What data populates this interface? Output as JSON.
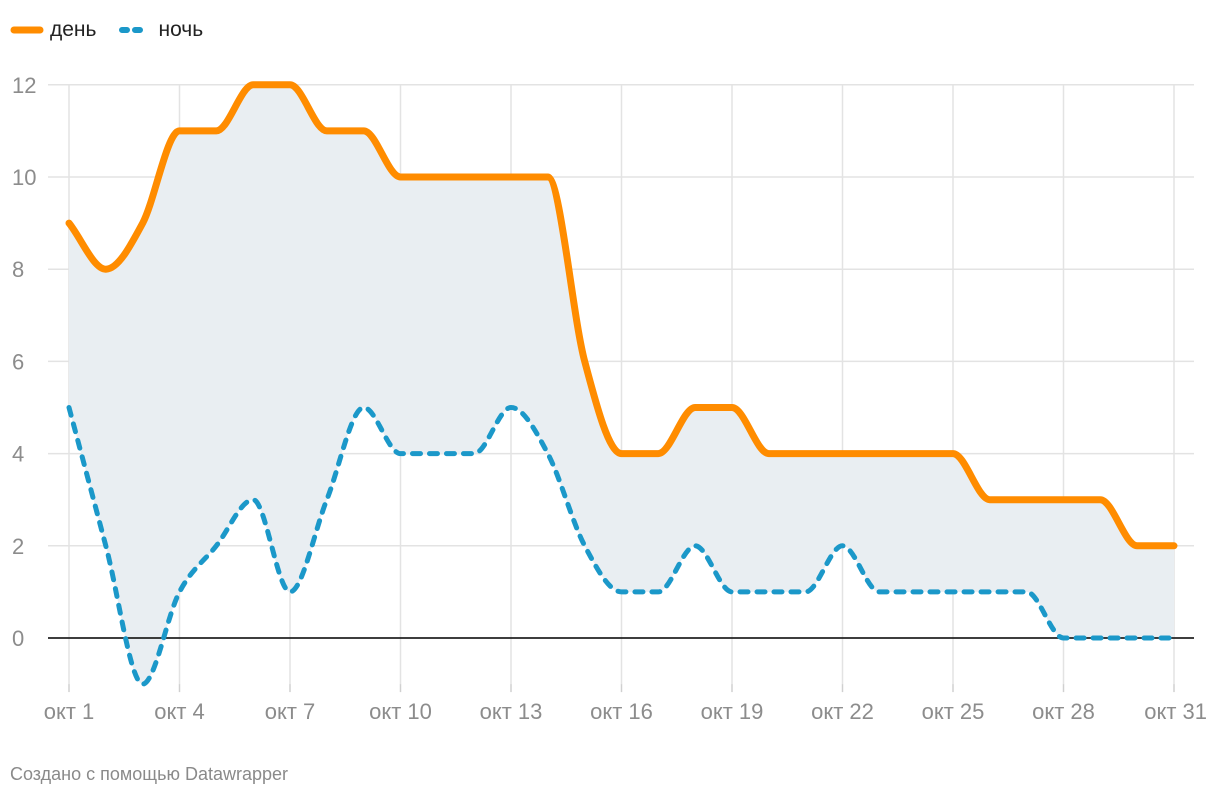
{
  "legend": {
    "day": "день",
    "night": "ночь"
  },
  "footer": "Создано с помощью Datawrapper",
  "chart_data": {
    "type": "line",
    "title": "",
    "xlabel": "",
    "ylabel": "",
    "x": [
      1,
      2,
      3,
      4,
      5,
      6,
      7,
      8,
      9,
      10,
      11,
      12,
      13,
      14,
      15,
      16,
      17,
      18,
      19,
      20,
      21,
      22,
      23,
      24,
      25,
      26,
      27,
      28,
      29,
      30,
      31
    ],
    "x_ticks": [
      1,
      4,
      7,
      10,
      13,
      16,
      19,
      22,
      25,
      28,
      31
    ],
    "x_tick_labels": [
      "окт 1",
      "окт 4",
      "окт 7",
      "окт 10",
      "окт 13",
      "окт 16",
      "окт 19",
      "окт 22",
      "окт 25",
      "окт 28",
      "окт 31"
    ],
    "y_ticks": [
      0,
      2,
      4,
      6,
      8,
      10,
      12
    ],
    "ylim": [
      -1,
      12
    ],
    "grid": true,
    "legend_position": "top-left",
    "range_fill": true,
    "series": [
      {
        "name": "день",
        "color": "#ff8c00",
        "style": "solid",
        "values": [
          9,
          8,
          9,
          11,
          11,
          12,
          12,
          11,
          11,
          10,
          10,
          10,
          10,
          10,
          6,
          4,
          4,
          5,
          5,
          4,
          4,
          4,
          4,
          4,
          4,
          3,
          3,
          3,
          3,
          2,
          2
        ]
      },
      {
        "name": "ночь",
        "color": "#1b98c9",
        "style": "dashed",
        "values": [
          5,
          2,
          -1,
          1,
          2,
          3,
          1,
          3,
          5,
          4,
          4,
          4,
          5,
          4,
          2,
          1,
          1,
          2,
          1,
          1,
          1,
          2,
          1,
          1,
          1,
          1,
          1,
          0,
          0,
          0,
          0
        ]
      }
    ],
    "colors": {
      "fill": "#e9eef2",
      "grid": "#e3e3e3",
      "zero_line": "#222222",
      "tick_text": "#8c8c8c"
    }
  }
}
